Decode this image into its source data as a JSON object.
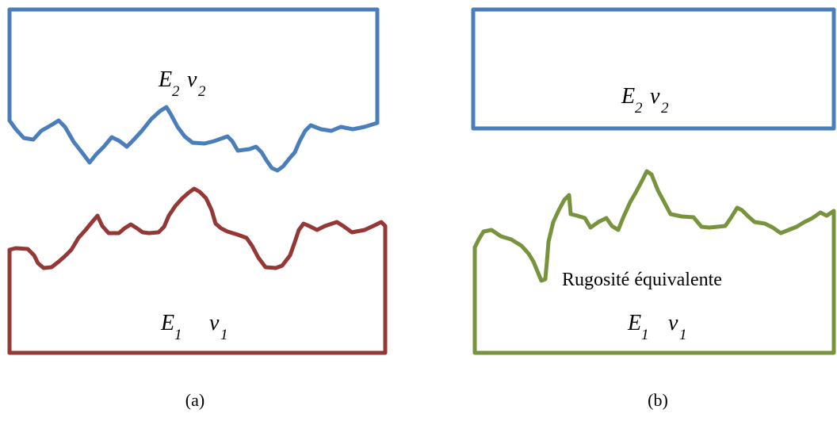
{
  "panel_a": {
    "caption": "(a)",
    "upper_body": {
      "modulus": "E",
      "modulus_sub": "2",
      "poisson": "ν",
      "poisson_sub": "2"
    },
    "lower_body": {
      "modulus": "E",
      "modulus_sub": "1",
      "poisson": "ν",
      "poisson_sub": "1"
    }
  },
  "panel_b": {
    "caption": "(b)",
    "upper_body": {
      "modulus": "E",
      "modulus_sub": "2",
      "poisson": "ν",
      "poisson_sub": "2"
    },
    "lower_body": {
      "modulus": "E",
      "modulus_sub": "1",
      "poisson": "ν",
      "poisson_sub": "1"
    },
    "surface_label": "Rugosité équivalente"
  },
  "colors": {
    "upper_body": "#4a7ebb",
    "lower_body_a": "#953735",
    "lower_body_b": "#77933c"
  }
}
